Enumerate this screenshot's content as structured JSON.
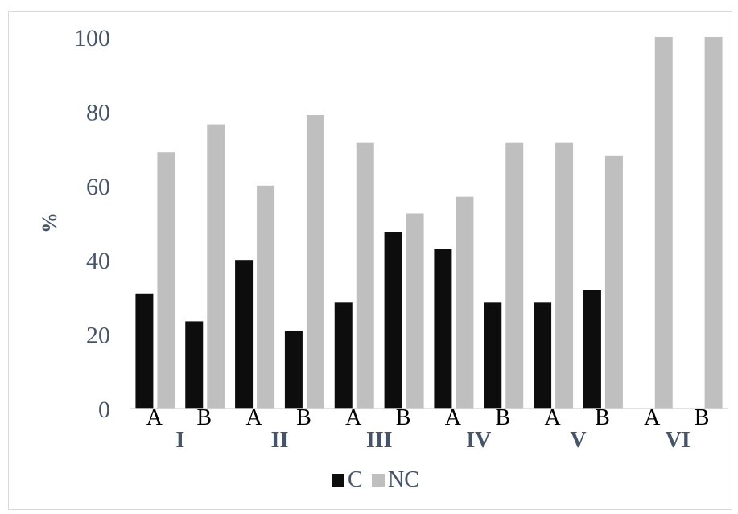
{
  "chart_data": {
    "type": "bar",
    "ylabel": "%",
    "xlabel": "",
    "ylim": [
      0,
      100
    ],
    "yticks": [
      "0",
      "20",
      "40",
      "60",
      "80",
      "100"
    ],
    "groups": [
      "I",
      "II",
      "III",
      "IV",
      "V",
      "VI"
    ],
    "subcategories": [
      "A",
      "B"
    ],
    "series": [
      {
        "name": "C",
        "color": "#0d0d0d",
        "values": [
          [
            31,
            23.5
          ],
          [
            40,
            21
          ],
          [
            28.5,
            47.5
          ],
          [
            43,
            28.5
          ],
          [
            28.5,
            32
          ],
          [
            0,
            0
          ]
        ]
      },
      {
        "name": "NC",
        "color": "#bfbfbf",
        "values": [
          [
            69,
            76.5
          ],
          [
            60,
            79
          ],
          [
            71.5,
            52.5
          ],
          [
            57,
            71.5
          ],
          [
            71.5,
            68
          ],
          [
            100,
            100
          ]
        ]
      }
    ],
    "legend_position": "bottom",
    "grid": false
  }
}
